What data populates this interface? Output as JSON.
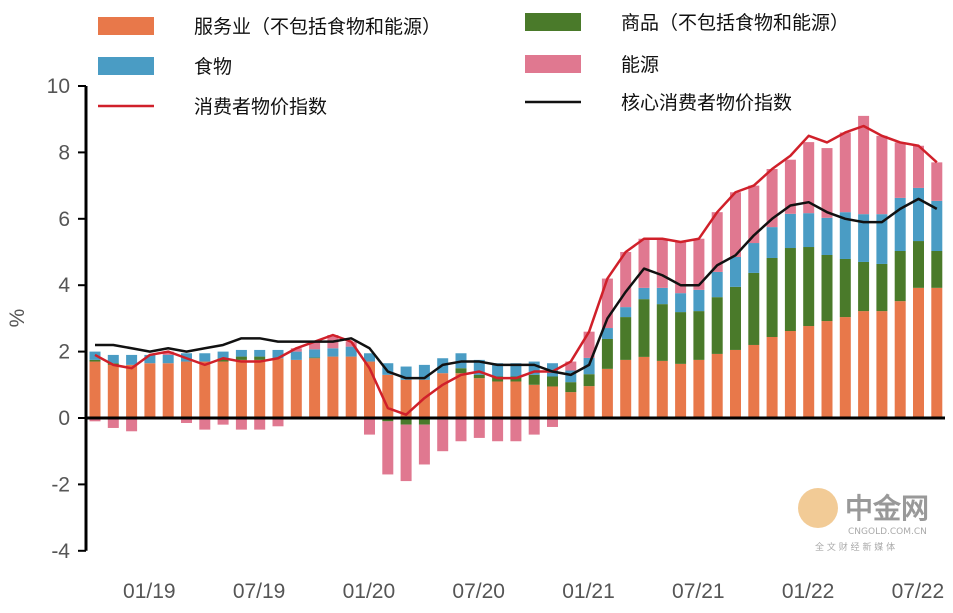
{
  "chart_data": {
    "type": "bar",
    "stacked": true,
    "title": "",
    "xlabel": "",
    "ylabel": "%",
    "ylim": [
      -4,
      10
    ],
    "yticks": [
      "-4",
      "-2",
      "0",
      "2",
      "4",
      "6",
      "8",
      "10"
    ],
    "grid": false,
    "legend_placement": "top",
    "categories": [
      "12/18",
      "01/19",
      "02/19",
      "03/19",
      "04/19",
      "05/19",
      "06/19",
      "07/19",
      "08/19",
      "09/19",
      "10/19",
      "11/19",
      "12/19",
      "01/20",
      "02/20",
      "03/20",
      "04/20",
      "05/20",
      "06/20",
      "07/20",
      "08/20",
      "09/20",
      "10/20",
      "11/20",
      "12/20",
      "01/21",
      "02/21",
      "03/21",
      "04/21",
      "05/21",
      "06/21",
      "07/21",
      "08/21",
      "09/21",
      "10/21",
      "11/21",
      "12/21",
      "01/22",
      "02/22",
      "03/22",
      "04/22",
      "05/22",
      "06/22",
      "07/22",
      "08/22",
      "09/22",
      "10/22"
    ],
    "xtick_labels": [
      "01/19",
      "07/19",
      "01/20",
      "07/20",
      "01/21",
      "07/21",
      "01/22",
      "07/22"
    ],
    "series": [
      {
        "name": "服务业（不包括食物和能源）",
        "kind": "bar",
        "color": "#e8784a",
        "values": [
          1.7,
          1.6,
          1.6,
          1.65,
          1.65,
          1.7,
          1.7,
          1.7,
          1.75,
          1.75,
          1.8,
          1.75,
          1.8,
          1.85,
          1.85,
          1.7,
          1.3,
          1.15,
          1.15,
          1.35,
          1.35,
          1.2,
          1.1,
          1.1,
          1.0,
          0.95,
          0.78,
          0.96,
          1.48,
          1.75,
          1.84,
          1.72,
          1.63,
          1.75,
          1.93,
          2.05,
          2.2,
          2.44,
          2.62,
          2.77,
          2.92,
          3.04,
          3.22,
          3.22,
          3.52,
          3.92,
          3.92
        ]
      },
      {
        "name": "商品（不包括食物和能源）",
        "kind": "bar",
        "color": "#4a7a2a",
        "values": [
          0.05,
          0.05,
          0,
          0,
          0,
          0,
          0,
          0.1,
          0.1,
          0.1,
          0,
          0,
          0.02,
          0,
          0,
          0,
          -0.1,
          -0.2,
          -0.2,
          -0.05,
          0.15,
          0.1,
          0.15,
          0.15,
          0.3,
          0.3,
          0.3,
          0.36,
          0.9,
          1.29,
          1.74,
          1.71,
          1.56,
          1.47,
          1.71,
          1.9,
          2.17,
          2.38,
          2.5,
          2.38,
          1.99,
          1.75,
          1.48,
          1.42,
          1.51,
          1.41,
          1.11
        ]
      },
      {
        "name": "食物",
        "kind": "bar",
        "color": "#4a9cc4",
        "values": [
          0.25,
          0.25,
          0.3,
          0.25,
          0.25,
          0.25,
          0.25,
          0.2,
          0.2,
          0.2,
          0.25,
          0.25,
          0.25,
          0.25,
          0.3,
          0.25,
          0.35,
          0.4,
          0.45,
          0.45,
          0.45,
          0.45,
          0.4,
          0.4,
          0.4,
          0.4,
          0.35,
          0.49,
          0.33,
          0.3,
          0.34,
          0.49,
          0.57,
          0.64,
          0.76,
          0.9,
          0.9,
          0.93,
          1.03,
          1.02,
          1.12,
          1.41,
          1.44,
          1.5,
          1.6,
          1.6,
          1.51
        ]
      },
      {
        "name": "能源",
        "kind": "bar",
        "color": "#e07890",
        "values": [
          -0.1,
          -0.3,
          -0.4,
          0,
          0.1,
          -0.15,
          -0.35,
          -0.2,
          -0.35,
          -0.35,
          -0.25,
          0.1,
          0.23,
          0.4,
          0.15,
          -0.5,
          -1.6,
          -1.7,
          -1.2,
          -0.95,
          -0.7,
          -0.6,
          -0.7,
          -0.7,
          -0.5,
          -0.27,
          0.27,
          0.79,
          1.49,
          1.66,
          1.48,
          1.48,
          1.54,
          1.54,
          1.8,
          1.95,
          1.73,
          1.75,
          1.63,
          2.14,
          2.1,
          2.4,
          2.96,
          2.36,
          1.67,
          1.27,
          1.16
        ]
      },
      {
        "name": "消费者物价指数",
        "kind": "line",
        "color": "#d0202a",
        "values": [
          1.9,
          1.6,
          1.5,
          1.9,
          2.0,
          1.8,
          1.6,
          1.8,
          1.7,
          1.7,
          1.8,
          2.1,
          2.3,
          2.5,
          2.3,
          1.5,
          0.3,
          0.1,
          0.6,
          1.0,
          1.3,
          1.4,
          1.2,
          1.2,
          1.4,
          1.4,
          1.7,
          2.6,
          4.2,
          5.0,
          5.4,
          5.4,
          5.3,
          5.4,
          6.2,
          6.8,
          7.0,
          7.5,
          7.9,
          8.5,
          8.3,
          8.6,
          9.1,
          8.5,
          8.3,
          8.2,
          7.7
        ]
      },
      {
        "name": "核心消费者物价指数",
        "kind": "line",
        "color": "#111111",
        "values": [
          2.2,
          2.2,
          2.1,
          2.0,
          2.1,
          2.0,
          2.1,
          2.2,
          2.4,
          2.4,
          2.3,
          2.3,
          2.3,
          2.3,
          2.4,
          2.1,
          1.4,
          1.2,
          1.2,
          1.6,
          1.7,
          1.7,
          1.6,
          1.6,
          1.6,
          1.4,
          1.3,
          1.6,
          3.0,
          3.8,
          4.5,
          4.3,
          4.0,
          4.0,
          4.6,
          4.9,
          5.5,
          6.0,
          6.4,
          6.5,
          6.2,
          6.0,
          5.9,
          5.9,
          6.3,
          6.6,
          6.3
        ]
      }
    ]
  },
  "watermark": {
    "logo_text": "中金网",
    "sub_text": "CNGOLD.COM.CN",
    "tagline": "全 文 财 经 新 媒 体"
  }
}
